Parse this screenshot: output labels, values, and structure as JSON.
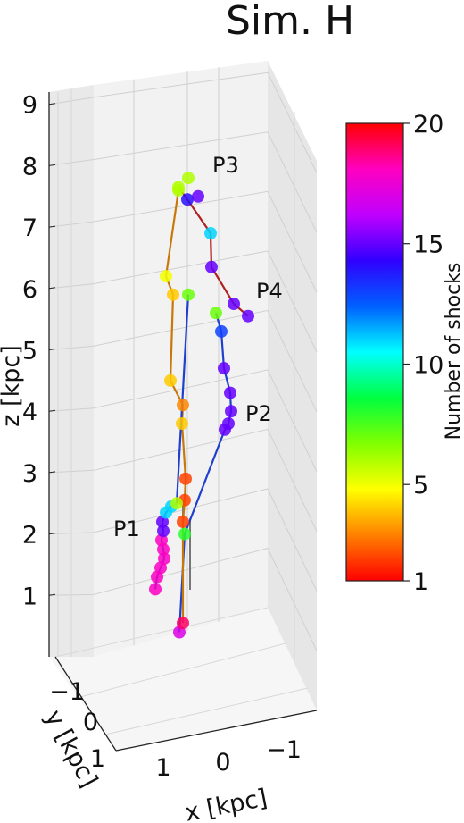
{
  "chart_data": {
    "type": "scatter",
    "projection": "3d",
    "title": "Sim. H",
    "xlabel": "x [kpc]",
    "ylabel": "y [kpc]",
    "zlabel": "z [kpc]",
    "x_ticks": [
      "1",
      "0",
      "−1"
    ],
    "y_ticks": [
      "−1",
      "0",
      "1"
    ],
    "z_ticks": [
      "1",
      "2",
      "3",
      "4",
      "5",
      "6",
      "7",
      "8",
      "9"
    ],
    "zlim": [
      0,
      9.2
    ],
    "grid": true,
    "colorbar": {
      "label": "Number of shocks",
      "ticks": [
        "1",
        "5",
        "10",
        "15",
        "20"
      ],
      "colormap": [
        "#ff0000",
        "#ff8000",
        "#ffff00",
        "#80ff00",
        "#00ff40",
        "#00ffff",
        "#0060ff",
        "#3000ff",
        "#c000ff",
        "#ff00c0",
        "#ff0000"
      ]
    },
    "point_labels": [
      "P1",
      "P2",
      "P3",
      "P4"
    ],
    "series": [
      {
        "label": "P1",
        "line_color": "#1f3fcf",
        "points": [
          {
            "z": 1.1,
            "shock": 18
          },
          {
            "z": 1.3,
            "shock": 18
          },
          {
            "z": 1.45,
            "shock": 18
          },
          {
            "z": 1.6,
            "shock": 18
          },
          {
            "z": 1.75,
            "shock": 18
          },
          {
            "z": 1.9,
            "shock": 18
          },
          {
            "z": 2.05,
            "shock": 15
          },
          {
            "z": 2.2,
            "shock": 15
          },
          {
            "z": 2.35,
            "shock": 11
          },
          {
            "z": 2.45,
            "shock": 11
          },
          {
            "z": 2.5,
            "shock": 6
          },
          {
            "z": 5.9,
            "shock": 7
          }
        ]
      },
      {
        "label": "P2",
        "line_color": "#1f3fcf",
        "points": [
          {
            "z": 0.4,
            "shock": 17
          },
          {
            "z": 2.0,
            "shock": 8
          },
          {
            "z": 3.7,
            "shock": 15
          },
          {
            "z": 3.8,
            "shock": 15
          },
          {
            "z": 4.0,
            "shock": 15
          },
          {
            "z": 4.3,
            "shock": 15
          },
          {
            "z": 4.7,
            "shock": 15
          },
          {
            "z": 5.3,
            "shock": 13
          },
          {
            "z": 5.6,
            "shock": 7
          }
        ]
      },
      {
        "label": "P3",
        "line_color": "#c8780a",
        "points": [
          {
            "z": 0.55,
            "shock": 19
          },
          {
            "z": 2.2,
            "shock": 2
          },
          {
            "z": 2.55,
            "shock": 2
          },
          {
            "z": 2.9,
            "shock": 2
          },
          {
            "z": 3.8,
            "shock": 4
          },
          {
            "z": 4.1,
            "shock": 3
          },
          {
            "z": 4.5,
            "shock": 4
          },
          {
            "z": 5.9,
            "shock": 4
          },
          {
            "z": 6.2,
            "shock": 5
          },
          {
            "z": 7.6,
            "shock": 6
          }
        ]
      },
      {
        "label": "P4",
        "line_color": "#b02020",
        "points": [
          {
            "z": 7.65,
            "shock": 6
          },
          {
            "z": 7.45,
            "shock": 14
          },
          {
            "z": 6.9,
            "shock": 11
          },
          {
            "z": 6.35,
            "shock": 15
          },
          {
            "z": 5.75,
            "shock": 15
          },
          {
            "z": 5.55,
            "shock": 15
          }
        ]
      }
    ]
  }
}
